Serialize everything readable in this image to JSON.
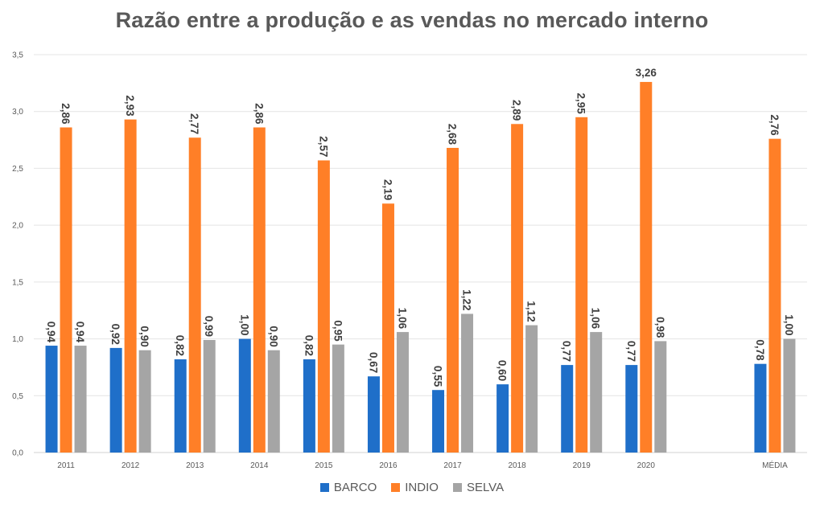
{
  "chart_data": {
    "type": "bar",
    "title": "Razão entre a produção e as vendas no mercado interno",
    "xlabel": "",
    "ylabel": "",
    "ylim": [
      0,
      3.5
    ],
    "yticks": [
      "0,0",
      "0,5",
      "1,0",
      "1,5",
      "2,0",
      "2,5",
      "3,0",
      "3,5"
    ],
    "ytick_values": [
      0,
      0.5,
      1.0,
      1.5,
      2.0,
      2.5,
      3.0,
      3.5
    ],
    "grid": true,
    "legend_position": "bottom",
    "categories": [
      "2011",
      "2012",
      "2013",
      "2014",
      "2015",
      "2016",
      "2017",
      "2018",
      "2019",
      "2020",
      "",
      "MÉDIA"
    ],
    "series": [
      {
        "name": "BARCO",
        "color": "#1F6FC9",
        "values": [
          0.94,
          0.92,
          0.82,
          1.0,
          0.82,
          0.67,
          0.55,
          0.6,
          0.77,
          0.77,
          null,
          0.78
        ],
        "labels": [
          "0,94",
          "0,92",
          "0,82",
          "1,00",
          "0,82",
          "0,67",
          "0,55",
          "0,60",
          "0,77",
          "0,77",
          null,
          "0,78"
        ]
      },
      {
        "name": "INDIO",
        "color": "#FF7F27",
        "values": [
          2.86,
          2.93,
          2.77,
          2.86,
          2.57,
          2.19,
          2.68,
          2.89,
          2.95,
          3.26,
          null,
          2.76
        ],
        "labels": [
          "2,86",
          "2,93",
          "2,77",
          "2,86",
          "2,57",
          "2,19",
          "2,68",
          "2,89",
          "2,95",
          "3,26",
          null,
          "2,76"
        ]
      },
      {
        "name": "SELVA",
        "color": "#A5A5A5",
        "values": [
          0.94,
          0.9,
          0.99,
          0.9,
          0.95,
          1.06,
          1.22,
          1.12,
          1.06,
          0.98,
          null,
          1.0
        ],
        "labels": [
          "0,94",
          "0,90",
          "0,99",
          "0,90",
          "0,95",
          "1,06",
          "1,22",
          "1,12",
          "1,06",
          "0,98",
          null,
          "1,00"
        ]
      }
    ],
    "label_orientation": {
      "default": "vertical",
      "horizontal_exceptions": [
        {
          "series": "INDIO",
          "category": "2020"
        }
      ]
    }
  },
  "legend": {
    "items": [
      {
        "label": "BARCO",
        "color": "#1F6FC9"
      },
      {
        "label": "INDIO",
        "color": "#FF7F27"
      },
      {
        "label": "SELVA",
        "color": "#A5A5A5"
      }
    ]
  }
}
